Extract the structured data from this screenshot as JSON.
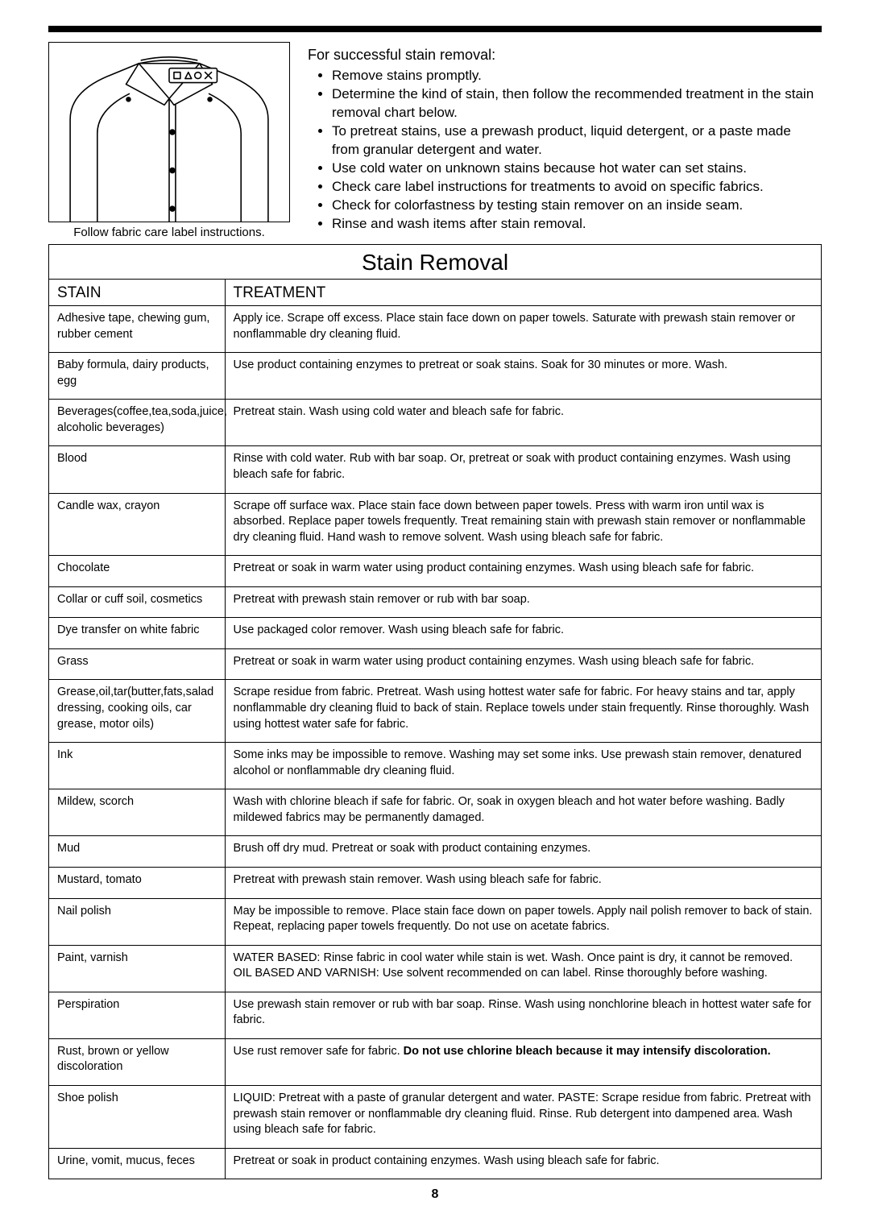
{
  "caption": "Follow fabric care label instructions.",
  "tips_heading": "For successful stain removal:",
  "tips": [
    "Remove stains promptly.",
    "Determine the kind of stain, then follow the recommended treatment in the stain removal chart below.",
    "To pretreat stains, use a prewash product, liquid detergent, or a paste made from granular detergent and water.",
    "Use cold water on unknown stains because hot water can set stains.",
    "Check care label instructions for treatments to avoid on specific fabrics.",
    "Check for colorfastness by testing stain remover on an inside seam.",
    "Rinse and wash items after stain removal."
  ],
  "table": {
    "title": "Stain Removal",
    "col_stain": "STAIN",
    "col_treatment": "TREATMENT",
    "rows": [
      {
        "stain": "Adhesive tape, chewing gum, rubber cement",
        "treatment": "Apply ice. Scrape off excess. Place stain face down on paper towels. Saturate with prewash stain remover or nonflammable dry cleaning fluid."
      },
      {
        "stain": "Baby formula, dairy products, egg",
        "treatment": "Use product containing enzymes to pretreat or soak stains. Soak for 30 minutes or more. Wash."
      },
      {
        "stain": "Beverages(coffee,tea,soda,juice, alcoholic beverages)",
        "treatment": "Pretreat stain. Wash using cold water and bleach safe for fabric."
      },
      {
        "stain": "Blood",
        "treatment": "Rinse with cold water. Rub with bar soap. Or, pretreat or soak with product containing enzymes. Wash using bleach safe for fabric."
      },
      {
        "stain": "Candle wax, crayon",
        "treatment": "Scrape off surface wax. Place stain face down between paper towels. Press with warm iron until wax is absorbed. Replace paper towels frequently. Treat remaining stain with prewash stain remover or nonflammable dry cleaning fluid. Hand wash to remove solvent. Wash using bleach safe for fabric."
      },
      {
        "stain": "Chocolate",
        "treatment": "Pretreat or soak in warm water using product containing enzymes. Wash using bleach safe for fabric."
      },
      {
        "stain": "Collar or cuff soil, cosmetics",
        "treatment": "Pretreat with prewash stain remover or rub with bar soap."
      },
      {
        "stain": "Dye transfer on white fabric",
        "treatment": "Use packaged color remover. Wash using bleach safe for fabric."
      },
      {
        "stain": "Grass",
        "treatment": "Pretreat or soak in warm water using product containing enzymes. Wash using bleach safe for fabric."
      },
      {
        "stain": "Grease,oil,tar(butter,fats,salad dressing, cooking oils, car grease, motor oils)",
        "treatment": "Scrape residue from fabric. Pretreat. Wash using hottest water safe for fabric. For heavy stains and tar, apply nonflammable dry cleaning fluid to back of stain. Replace towels under stain frequently. Rinse thoroughly. Wash using hottest water safe for fabric."
      },
      {
        "stain": "Ink",
        "treatment": "Some inks may be impossible to remove. Washing may set some inks. Use prewash stain remover, denatured alcohol or nonflammable dry cleaning fluid."
      },
      {
        "stain": "Mildew, scorch",
        "treatment": "Wash with chlorine bleach if safe for fabric. Or, soak in oxygen bleach and hot water before washing. Badly mildewed fabrics may be permanently damaged."
      },
      {
        "stain": "Mud",
        "treatment": "Brush off dry mud. Pretreat or soak with product containing enzymes."
      },
      {
        "stain": "Mustard, tomato",
        "treatment": "Pretreat with prewash stain remover. Wash using bleach safe for fabric."
      },
      {
        "stain": "Nail polish",
        "treatment": "May be impossible to remove. Place stain face down on paper towels. Apply nail polish remover to back of stain. Repeat, replacing paper towels frequently. Do not use on acetate fabrics."
      },
      {
        "stain": "Paint, varnish",
        "treatment": "WATER BASED: Rinse fabric in cool water while stain is wet. Wash. Once paint is dry, it cannot be removed. OIL BASED AND VARNISH: Use solvent recommended on can label. Rinse thoroughly before washing."
      },
      {
        "stain": "Perspiration",
        "treatment": "Use prewash stain remover or rub with bar soap. Rinse. Wash using nonchlorine bleach in hottest water safe for fabric."
      },
      {
        "stain": "Rust, brown or yellow discoloration",
        "treatment_prefix": "Use rust remover safe for fabric. ",
        "treatment_bold": "Do not use chlorine bleach because it may intensify discoloration."
      },
      {
        "stain": "Shoe polish",
        "treatment": "LIQUID: Pretreat with a paste of granular detergent and water. PASTE: Scrape residue from fabric. Pretreat with prewash stain remover or nonflammable dry cleaning fluid. Rinse. Rub detergent into dampened area. Wash using bleach safe for fabric."
      },
      {
        "stain": "Urine, vomit, mucus, feces",
        "treatment": "Pretreat or soak in product containing enzymes. Wash using bleach safe for fabric."
      }
    ]
  },
  "page_number": "8"
}
